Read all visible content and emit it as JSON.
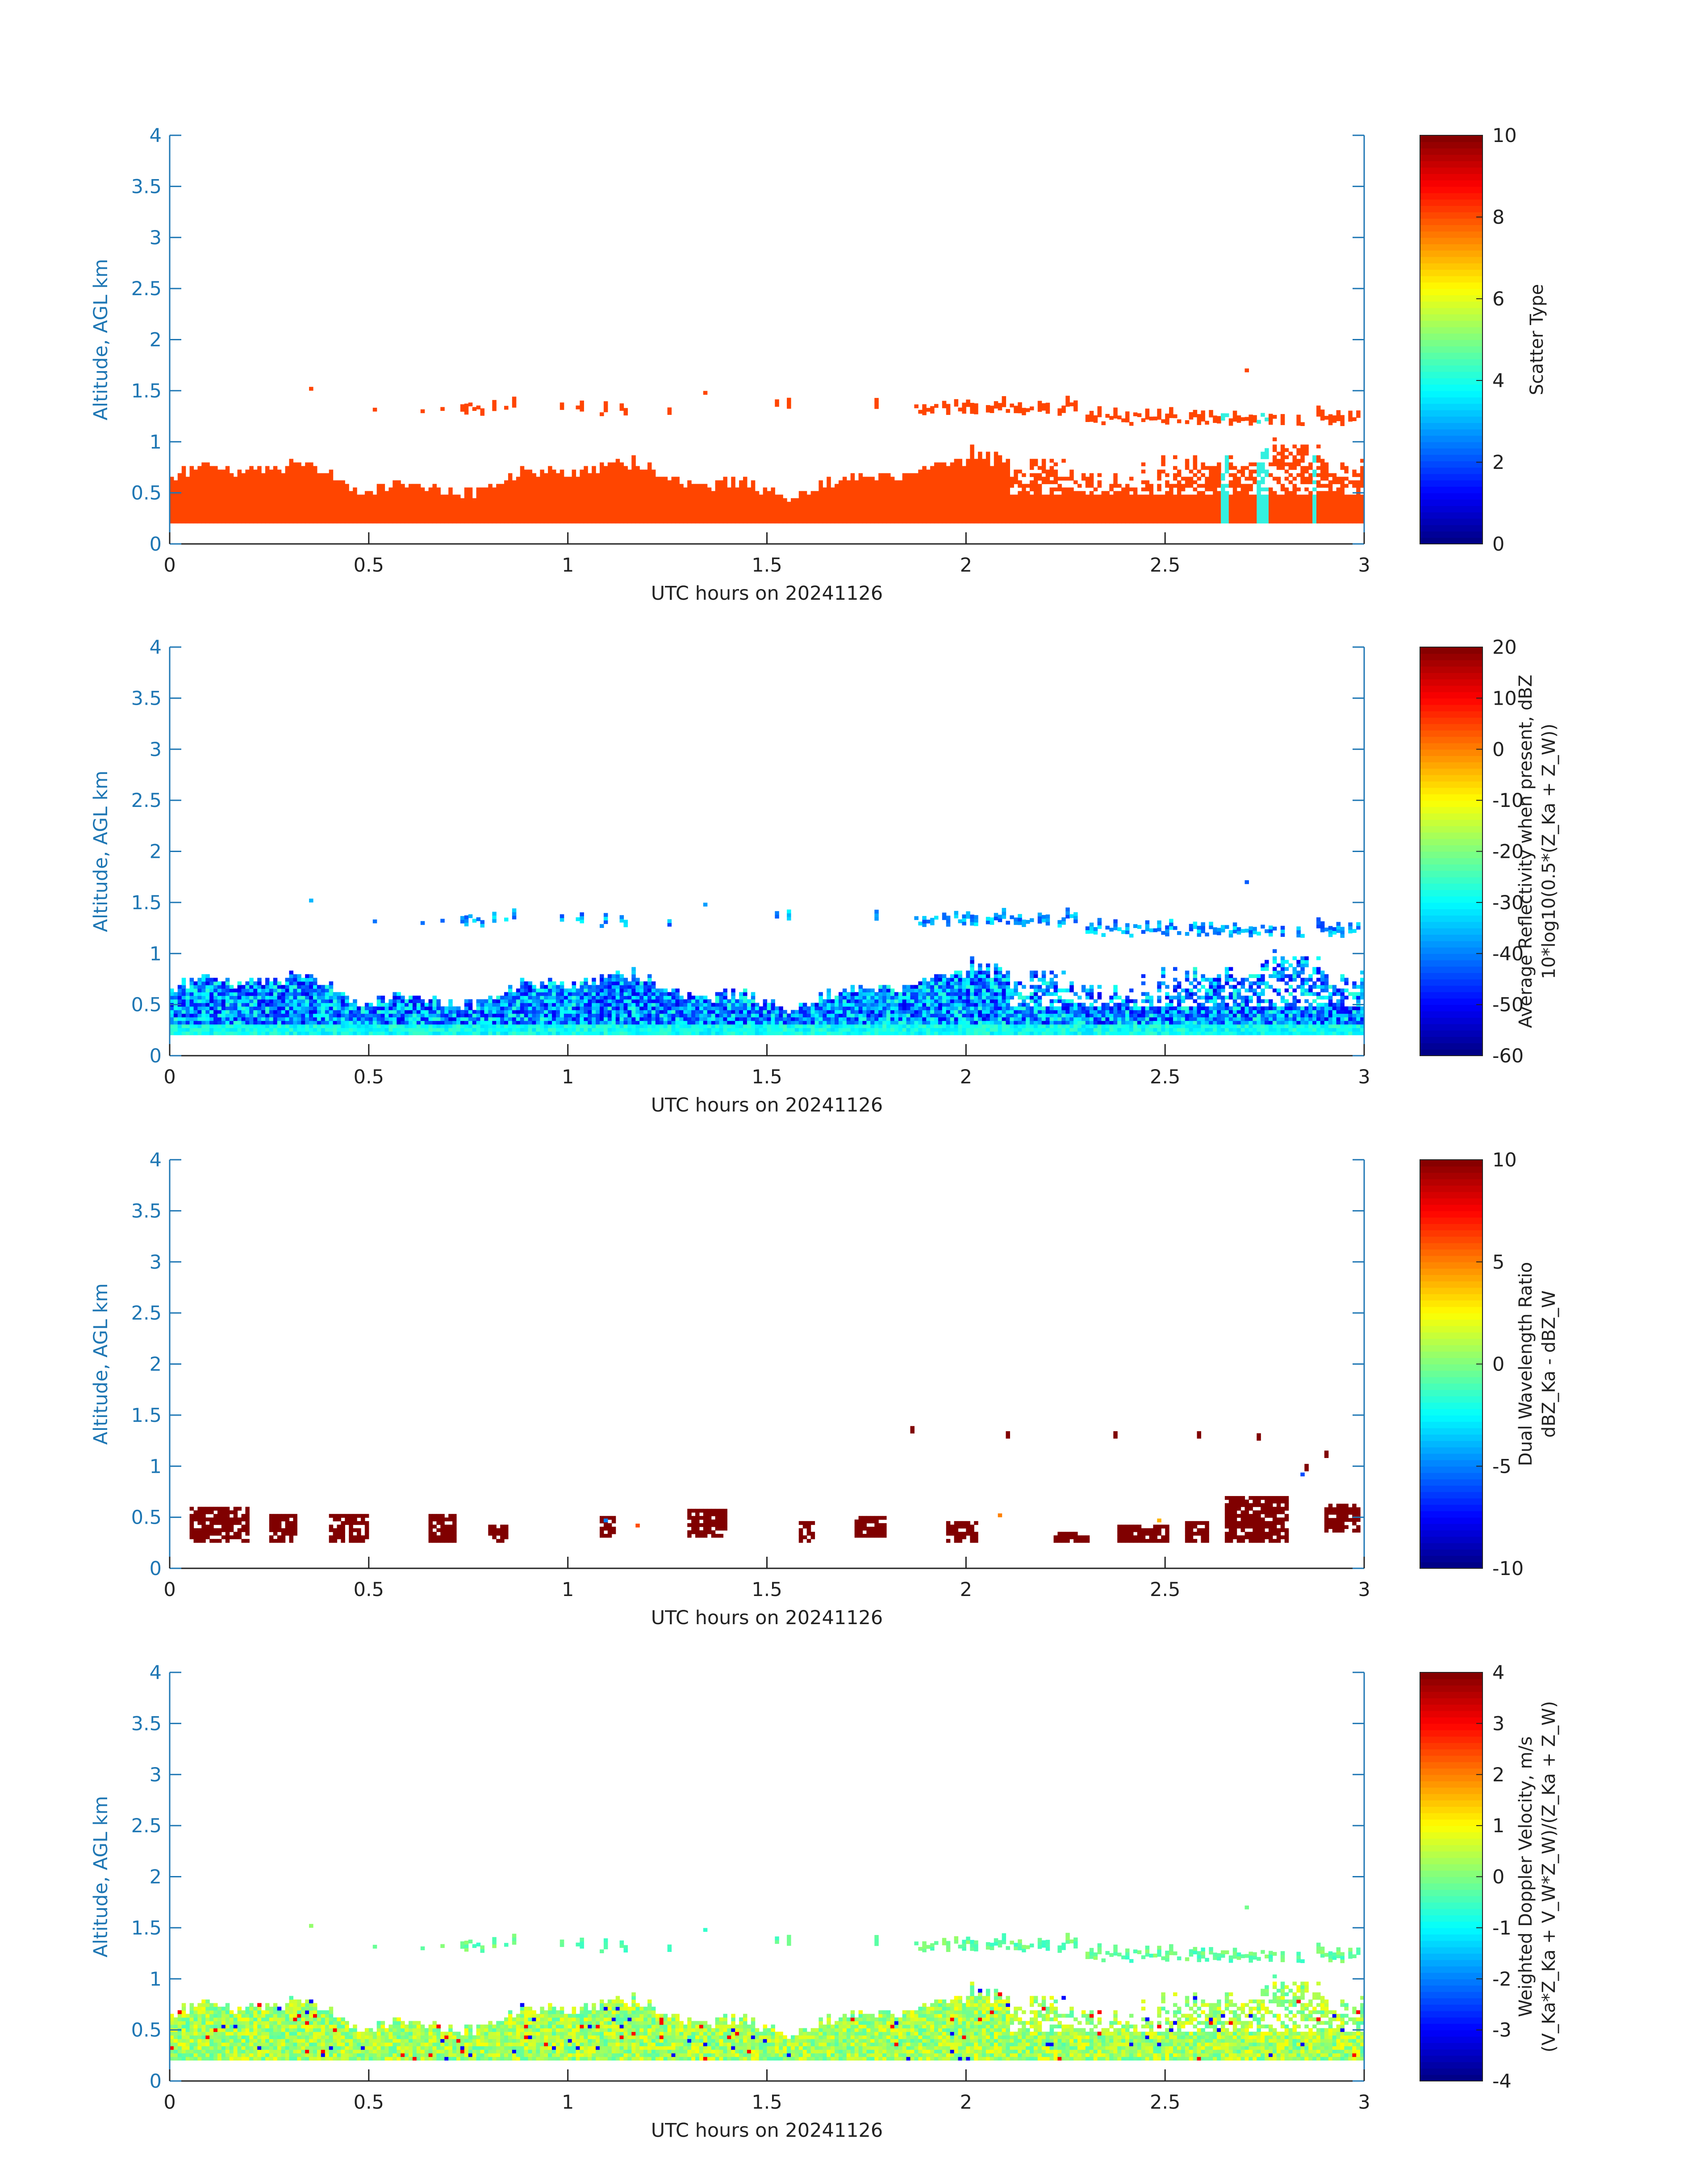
{
  "chart_data": [
    {
      "type": "heatmap",
      "xlabel": "UTC hours on 20241126",
      "ylabel": "Altitude, AGL km",
      "xlim": [
        0,
        3
      ],
      "ylim": [
        0,
        4
      ],
      "x_ticks": [
        "0",
        "0.5",
        "1",
        "1.5",
        "2",
        "2.5",
        "3"
      ],
      "y_ticks": [
        "0",
        "0.5",
        "1",
        "1.5",
        "2",
        "2.5",
        "3",
        "3.5",
        "4"
      ],
      "colorbar": {
        "label_lines": [
          "Scatter Type"
        ],
        "min": 0,
        "max": 10,
        "ticks": [
          "0",
          "2",
          "4",
          "6",
          "8",
          "10"
        ]
      },
      "field": "scatter_type",
      "features": "orange-red (≈8.7) filled layer 0.2–0.7 km across 0–3 h; sparse cloud layer 1.1–1.4 km; cyan (≈3.5) column segments near 2.65 h and 2.72–2.75 h"
    },
    {
      "type": "heatmap",
      "xlabel": "UTC hours on 20241126",
      "ylabel": "Altitude, AGL km",
      "xlim": [
        0,
        3
      ],
      "ylim": [
        0,
        4
      ],
      "x_ticks": [
        "0",
        "0.5",
        "1",
        "1.5",
        "2",
        "2.5",
        "3"
      ],
      "y_ticks": [
        "0",
        "0.5",
        "1",
        "1.5",
        "2",
        "2.5",
        "3",
        "3.5",
        "4"
      ],
      "colorbar": {
        "label_lines": [
          "Average Reflectivity when present, dBZ",
          "10*log10(0.5*(Z_Ka + Z_W))"
        ],
        "min": -60,
        "max": 20,
        "ticks": [
          "-60",
          "-50",
          "-40",
          "-30",
          "-20",
          "-10",
          "0",
          "10",
          "20"
        ]
      },
      "field": "reflectivity_dbz",
      "features": "values -55 to -25 dBZ; low layer 0.2–0.75 km, lowest gates greenish (~ -25); upper layer 1.1–1.4 km mostly -35 to -45"
    },
    {
      "type": "heatmap",
      "xlabel": "UTC hours on 20241126",
      "ylabel": "Altitude, AGL km",
      "xlim": [
        0,
        3
      ],
      "ylim": [
        0,
        4
      ],
      "x_ticks": [
        "0",
        "0.5",
        "1",
        "1.5",
        "2",
        "2.5",
        "3"
      ],
      "y_ticks": [
        "0",
        "0.5",
        "1",
        "1.5",
        "2",
        "2.5",
        "3",
        "3.5",
        "4"
      ],
      "colorbar": {
        "label_lines": [
          "Dual Wavelength Ratio",
          "dBZ_Ka - dBZ_W"
        ],
        "min": -10,
        "max": 10,
        "ticks": [
          "-10",
          "-5",
          "0",
          "5",
          "10"
        ]
      },
      "field": "dual_wavelength_ratio",
      "features": "sparse dark-red (≈10 dB) patches at 0.25–0.65 km, a few points 1.0–1.35 km after 1.85 h"
    },
    {
      "type": "heatmap",
      "xlabel": "UTC hours on 20241126",
      "ylabel": "Altitude, AGL km",
      "xlim": [
        0,
        3
      ],
      "ylim": [
        0,
        4
      ],
      "x_ticks": [
        "0",
        "0.5",
        "1",
        "1.5",
        "2",
        "2.5",
        "3"
      ],
      "y_ticks": [
        "0",
        "0.5",
        "1",
        "1.5",
        "2",
        "2.5",
        "3",
        "3.5",
        "4"
      ],
      "colorbar": {
        "label_lines": [
          "Weighted Doppler Velocity, m/s",
          "(V_Ka*Z_Ka + V_W*Z_W)/(Z_Ka + Z_W)"
        ],
        "min": -4,
        "max": 4,
        "ticks": [
          "-4",
          "-3",
          "-2",
          "-1",
          "0",
          "1",
          "2",
          "3",
          "4"
        ]
      },
      "field": "doppler_velocity",
      "features": "mostly -0.5 to +1 m/s (green-yellow) in low layer, upper layer ~0 m/s, scattered outliers ±3"
    }
  ],
  "colors": {
    "axis": "#1f77b4",
    "colormap": "jet",
    "scatter_main": "#ff4500",
    "scatter_cyan": "#33f0e0"
  }
}
